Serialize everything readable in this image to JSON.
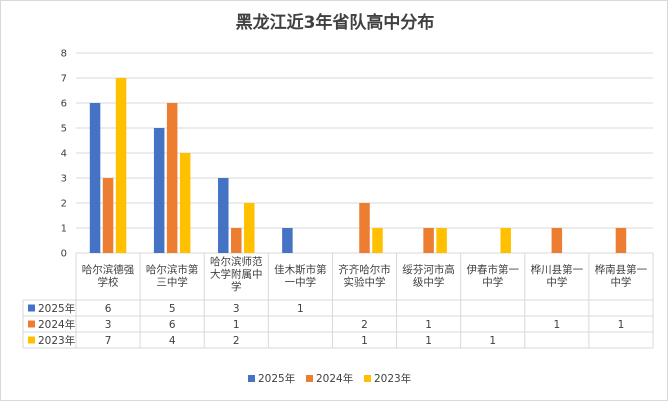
{
  "chart_data": {
    "type": "bar",
    "title": "黑龙江近3年省队高中分布",
    "ylim": [
      0,
      8
    ],
    "yticks": [
      0,
      1,
      2,
      3,
      4,
      5,
      6,
      7,
      8
    ],
    "grid": true,
    "legend": "bottom",
    "categories": [
      [
        "哈尔滨德强",
        "学校"
      ],
      [
        "哈尔滨市第",
        "三中学"
      ],
      [
        "哈尔滨师范",
        "大学附属中",
        "学"
      ],
      [
        "佳木斯市第",
        "一中学"
      ],
      [
        "齐齐哈尔市",
        "实验中学"
      ],
      [
        "绥芬河市高",
        "级中学"
      ],
      [
        "伊春市第一",
        "中学"
      ],
      [
        "桦川县第一",
        "中学"
      ],
      [
        "桦南县第一",
        "中学"
      ]
    ],
    "series": [
      {
        "name": "2025年",
        "color": "#4472C4",
        "values": [
          6,
          5,
          3,
          1,
          null,
          null,
          null,
          null,
          null
        ]
      },
      {
        "name": "2024年",
        "color": "#ED7D31",
        "values": [
          3,
          6,
          1,
          null,
          2,
          1,
          null,
          1,
          1
        ]
      },
      {
        "name": "2023年",
        "color": "#FFC000",
        "values": [
          7,
          4,
          2,
          null,
          1,
          1,
          1,
          null,
          null
        ]
      }
    ]
  }
}
